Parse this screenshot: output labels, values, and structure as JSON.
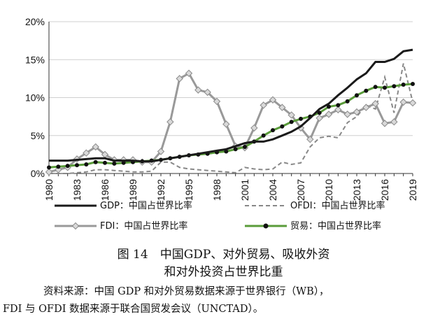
{
  "chart_data": {
    "type": "line",
    "x": [
      1980,
      1981,
      1982,
      1983,
      1984,
      1985,
      1986,
      1987,
      1988,
      1989,
      1990,
      1991,
      1992,
      1993,
      1994,
      1995,
      1996,
      1997,
      1998,
      1999,
      2000,
      2001,
      2002,
      2003,
      2004,
      2005,
      2006,
      2007,
      2008,
      2009,
      2010,
      2011,
      2012,
      2013,
      2014,
      2015,
      2016,
      2017,
      2018,
      2019
    ],
    "x_ticks": [
      "1980",
      "1983",
      "1986",
      "1989",
      "1992",
      "1995",
      "1998",
      "2001",
      "2004",
      "2007",
      "2010",
      "2013",
      "2016",
      "2019"
    ],
    "y_ticks": [
      "0%",
      "5%",
      "10%",
      "15%",
      "20%"
    ],
    "ylim": [
      0,
      20
    ],
    "grid": "horizontal",
    "legend_placement": "bottom",
    "series": [
      {
        "name": "GDP：中国占世界比率",
        "color": "#1a1a1a",
        "style": "solid-thick",
        "values": [
          1.7,
          1.7,
          1.7,
          1.8,
          1.9,
          2.0,
          2.0,
          1.7,
          1.7,
          1.7,
          1.6,
          1.6,
          1.8,
          2.0,
          2.2,
          2.4,
          2.6,
          2.8,
          3.0,
          3.2,
          3.6,
          4.0,
          4.2,
          4.2,
          4.5,
          5.0,
          5.5,
          6.2,
          7.3,
          8.5,
          9.2,
          10.3,
          11.3,
          12.4,
          13.2,
          14.7,
          14.7,
          15.1,
          16.1,
          16.3
        ]
      },
      {
        "name": "OFDI：中国占世界比率",
        "color": "#888888",
        "style": "dashed",
        "values": [
          0,
          0,
          0,
          0.1,
          0.2,
          0.5,
          0.5,
          0.4,
          0.3,
          0.2,
          0.2,
          0.3,
          1.5,
          1.5,
          0.8,
          0.6,
          0.5,
          0.4,
          0.3,
          0.2,
          0.1,
          0.8,
          0.6,
          0.5,
          0.6,
          1.5,
          1.2,
          1.4,
          3.5,
          4.7,
          4.9,
          4.7,
          6.7,
          7.5,
          9.0,
          8.5,
          12.7,
          8.0,
          14.5,
          9.4
        ]
      },
      {
        "name": "FDI：中国占世界比率",
        "color": "#999999",
        "style": "diamond",
        "values": [
          0.2,
          0.5,
          0.8,
          1.9,
          2.7,
          3.5,
          2.5,
          1.8,
          1.8,
          1.8,
          1.5,
          1.5,
          2.9,
          6.8,
          12.5,
          13.2,
          11.0,
          10.7,
          9.5,
          6.5,
          3.6,
          3.4,
          6.0,
          9.0,
          9.7,
          8.7,
          7.7,
          6.0,
          4.5,
          7.3,
          7.8,
          8.4,
          7.8,
          8.1,
          8.7,
          9.2,
          6.6,
          6.8,
          9.4,
          9.3
        ]
      },
      {
        "name": "贸易：中国占世界比率",
        "color": "#5a9c3a",
        "style": "dots",
        "values": [
          0.8,
          0.9,
          1.0,
          1.1,
          1.2,
          1.5,
          1.4,
          1.3,
          1.4,
          1.5,
          1.6,
          1.7,
          1.8,
          2.0,
          2.2,
          2.4,
          2.5,
          2.6,
          2.8,
          2.9,
          3.2,
          3.5,
          4.2,
          5.0,
          5.7,
          6.2,
          6.8,
          7.2,
          7.5,
          8.0,
          8.8,
          9.0,
          9.5,
          10.3,
          10.9,
          11.4,
          11.3,
          11.5,
          11.7,
          11.8
        ]
      }
    ]
  },
  "caption": {
    "line1": "图 14　中国GDP、对外贸易、吸收外资",
    "line2": "和对外投资占世界比重"
  },
  "source_note": {
    "line1": "资料来源：中国 GDP 和对外贸易数据来源于世界银行（WB），",
    "line2": "FDI 与 OFDI 数据来源于联合国贸发会议（UNCTAD）。"
  }
}
